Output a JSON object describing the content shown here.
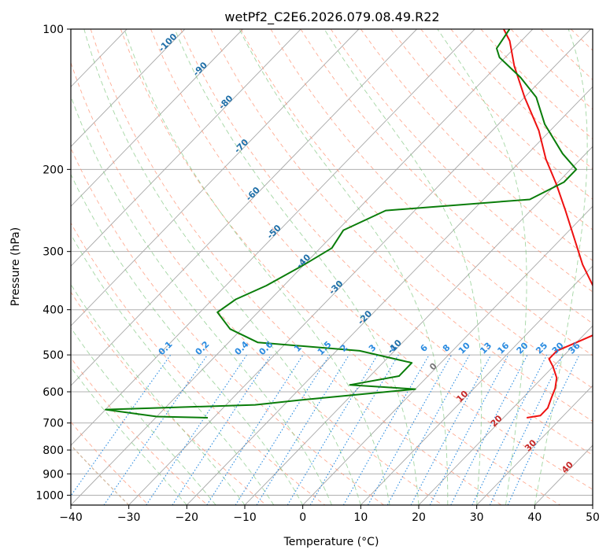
{
  "chart_data": {
    "type": "skew-t log-p",
    "title": "wetPf2_C2E6.2026.079.08.49.R22",
    "xlabel": "Temperature (°C)",
    "ylabel": "Pressure (hPa)",
    "xlim": [
      -40,
      50
    ],
    "ylim": [
      1050,
      100
    ],
    "y_scale": "log",
    "grid": true,
    "x_ticks": [
      "−40",
      "−30",
      "−20",
      "−10",
      "0",
      "10",
      "20",
      "30",
      "40",
      "50"
    ],
    "y_ticks": [
      "100",
      "200",
      "300",
      "400",
      "500",
      "600",
      "700",
      "800",
      "900",
      "1000"
    ],
    "series": [
      {
        "color": "#ee1111",
        "role": "temperature",
        "points": [
          [
            24,
            682
          ],
          [
            26,
            675
          ],
          [
            26,
            650
          ],
          [
            25,
            620
          ],
          [
            24,
            590
          ],
          [
            22.5,
            560
          ],
          [
            20,
            530
          ],
          [
            18,
            510
          ],
          [
            18,
            490
          ],
          [
            20,
            470
          ],
          [
            22,
            450
          ],
          [
            20.5,
            420
          ],
          [
            19,
            395
          ],
          [
            14,
            360
          ],
          [
            8,
            320
          ],
          [
            2,
            280
          ],
          [
            -4,
            245
          ],
          [
            -10,
            215
          ],
          [
            -16,
            190
          ],
          [
            -22,
            165
          ],
          [
            -30,
            140
          ],
          [
            -37,
            120
          ],
          [
            -42,
            106
          ],
          [
            -45,
            100
          ]
        ]
      },
      {
        "color": "#0a7d0a",
        "role": "dewpoint",
        "points": [
          [
            -31,
            682
          ],
          [
            -40,
            678
          ],
          [
            -50,
            655
          ],
          [
            -25,
            640
          ],
          [
            -18,
            625
          ],
          [
            0,
            592
          ],
          [
            -12,
            580
          ],
          [
            -5,
            555
          ],
          [
            -5,
            520
          ],
          [
            -16,
            490
          ],
          [
            -35,
            470
          ],
          [
            -42,
            440
          ],
          [
            -47,
            405
          ],
          [
            -46,
            380
          ],
          [
            -43,
            355
          ],
          [
            -40,
            320
          ],
          [
            -38,
            295
          ],
          [
            -39,
            270
          ],
          [
            -35,
            245
          ],
          [
            -12,
            232
          ],
          [
            -9,
            213
          ],
          [
            -9,
            200
          ],
          [
            -14,
            185
          ],
          [
            -22,
            160
          ],
          [
            -28,
            140
          ],
          [
            -34,
            127
          ],
          [
            -41,
            115
          ],
          [
            -43,
            110
          ],
          [
            -44,
            100
          ]
        ]
      }
    ],
    "dry_adiabat_labels": [],
    "moist_adiabat_labels": [
      {
        "text": "-100",
        "t": -100,
        "p": 108
      },
      {
        "text": "-90",
        "t": -90,
        "p": 123
      },
      {
        "text": "-80",
        "t": -80,
        "p": 145
      },
      {
        "text": "-70",
        "t": -70,
        "p": 180
      },
      {
        "text": "-60",
        "t": -60,
        "p": 228
      },
      {
        "text": "-50",
        "t": -50,
        "p": 275
      },
      {
        "text": "-40",
        "t": -40,
        "p": 318
      },
      {
        "text": "-30",
        "t": -30,
        "p": 362
      },
      {
        "text": "-20",
        "t": -20,
        "p": 420
      },
      {
        "text": "-10",
        "t": -10,
        "p": 485
      }
    ],
    "mixing_ratio_labels": [
      "0.1",
      "0.2",
      "0.4",
      "0.6",
      "1",
      "1.5",
      "2",
      "3",
      "4",
      "6",
      "8",
      "10",
      "13",
      "16",
      "20",
      "25",
      "30",
      "36"
    ],
    "isotherm_labels": [
      {
        "text": "0",
        "t": 0,
        "p": 535
      },
      {
        "text": "10",
        "t": 10,
        "p": 620
      },
      {
        "text": "20",
        "t": 20,
        "p": 700
      },
      {
        "text": "30",
        "t": 30,
        "p": 790
      },
      {
        "text": "40",
        "t": 40,
        "p": 880
      }
    ],
    "colors": {
      "temperature": "#ee1111",
      "dewpoint": "#0a7d0a",
      "moist_label": "#1f6fa8",
      "mixing_ratio": "#2a8be0",
      "isotherm_label": "#c62828",
      "isotherm": "#888888",
      "dry_adiabat": "#ff9070",
      "moist_adiabat": "#7cc47c",
      "thetae": "#c8a888"
    }
  }
}
